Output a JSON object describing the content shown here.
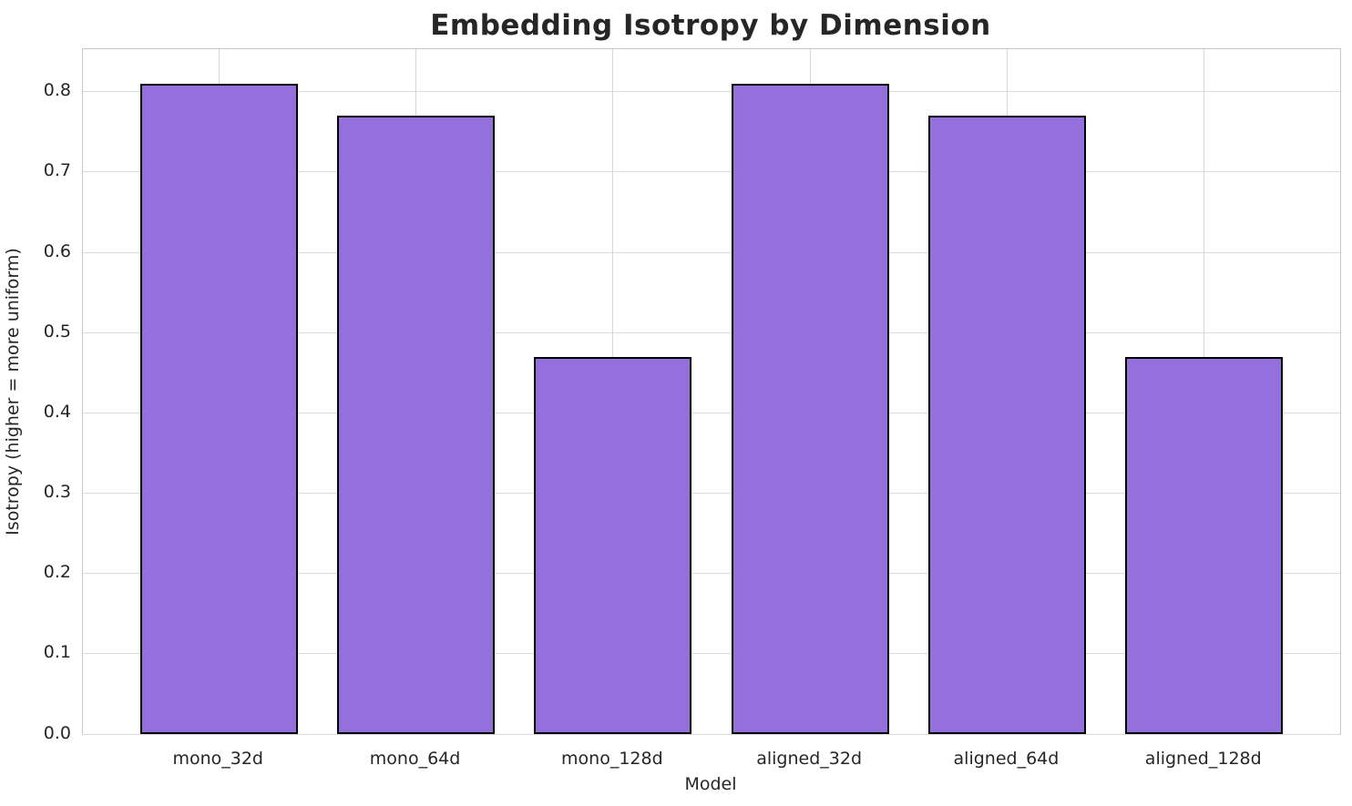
{
  "chart_data": {
    "type": "bar",
    "title": "Embedding Isotropy by Dimension",
    "xlabel": "Model",
    "ylabel": "Isotropy (higher = more uniform)",
    "categories": [
      "mono_32d",
      "mono_64d",
      "mono_128d",
      "aligned_32d",
      "aligned_64d",
      "aligned_128d"
    ],
    "values": [
      0.81,
      0.77,
      0.47,
      0.81,
      0.77,
      0.47
    ],
    "ylim": [
      0,
      0.853
    ],
    "yticks": [
      0.0,
      0.1,
      0.2,
      0.3,
      0.4,
      0.5,
      0.6,
      0.7,
      0.8
    ],
    "grid": true,
    "legend_position": "none",
    "bar_color": "#9370DB",
    "bar_edge_color": "#000000",
    "text_color": "#262626",
    "grid_color": "#dcdcdc"
  }
}
